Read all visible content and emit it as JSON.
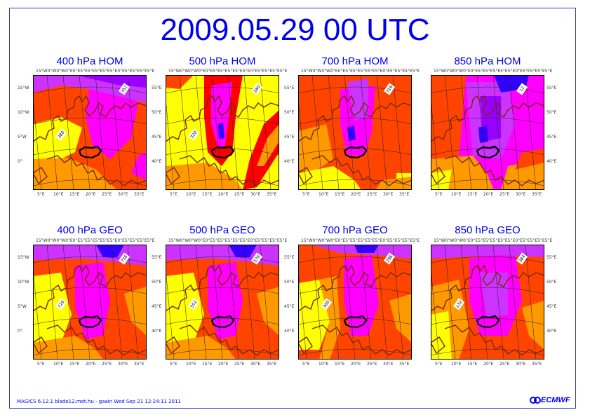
{
  "title": "2009.05.29 00 UTC",
  "footer": "MAGICS 6.12.1 blade12.met.hu - gaain Wed Sep 21 12:24:11 2011",
  "logo": "ECMWF",
  "lon_top_labels": "15°W0°W0°W0°E0°E5°E5°E5°E5°E5°E0°E5°E5°E5°E5°E",
  "lon_bottom_labels": [
    "5°E",
    "10°E",
    "15°E",
    "20°E",
    "25°E",
    "30°E",
    "35°E"
  ],
  "lat_left_labels": [
    "15°W",
    "10°W",
    "5°W",
    "0°"
  ],
  "lat_left_labels_alt": [
    "40°E"
  ],
  "lat_right_labels": [
    "55°E",
    "50°E",
    "45°E",
    "40°E"
  ],
  "colors": {
    "title": "#0000ee",
    "yellow": "#ffff00",
    "orange": "#ff9900",
    "red_orange": "#ff4400",
    "red": "#ff0000",
    "magenta": "#ff00ff",
    "violet": "#cc33ff",
    "purple": "#9900ff",
    "blue": "#3300ff",
    "coast": "#7a2a00"
  },
  "panels": [
    {
      "title": "400 hPa HOM",
      "contour_label": "352",
      "extra_label": "380"
    },
    {
      "title": "500 hPa HOM",
      "contour_label": "280",
      "extra_label": "320"
    },
    {
      "title": "700 hPa HOM",
      "contour_label": "316",
      "extra_label": ""
    },
    {
      "title": "850 hPa HOM",
      "contour_label": "12",
      "extra_label": ""
    },
    {
      "title": "400 hPa GEO",
      "contour_label": "736",
      "extra_label": "720"
    },
    {
      "title": "500 hPa GEO",
      "contour_label": "576",
      "extra_label": "552"
    },
    {
      "title": "700 hPa GEO",
      "contour_label": "296",
      "extra_label": "300"
    },
    {
      "title": "850 hPa GEO",
      "contour_label": "384",
      "extra_label": "132"
    }
  ]
}
